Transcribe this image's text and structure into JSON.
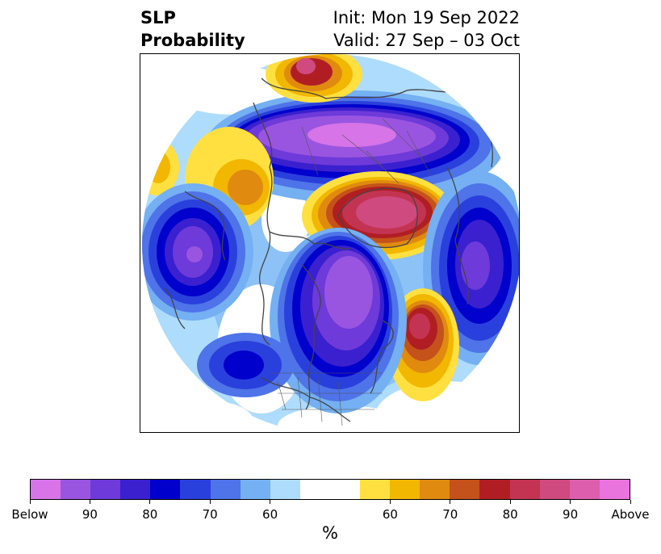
{
  "header": {
    "title_line1": "SLP",
    "title_line2": "Probability",
    "init": "Init: Mon 19 Sep 2022",
    "valid": "Valid: 27 Sep – 03 Oct"
  },
  "map": {
    "projection": "polar stereographic (Northern Hemisphere)",
    "features": [
      {
        "type": "below",
        "level_percent": 90,
        "near": "Arctic / northern Siberia"
      },
      {
        "type": "below",
        "level_percent": 80,
        "near": "North Pacific"
      },
      {
        "type": "below",
        "level_percent": 80,
        "near": "Eastern North America"
      },
      {
        "type": "below",
        "level_percent": 80,
        "near": "Northeast Atlantic / Europe"
      },
      {
        "type": "above",
        "level_percent": 90,
        "near": "Greenland"
      },
      {
        "type": "above",
        "level_percent": 80,
        "near": "Central North Atlantic"
      },
      {
        "type": "above",
        "level_percent": 70,
        "near": "Western Russia"
      },
      {
        "type": "above",
        "level_percent": 70,
        "near": "East Asia"
      }
    ]
  },
  "colorbar": {
    "colors": [
      "#d674e8",
      "#9a55e0",
      "#6e3ad9",
      "#3a20cf",
      "#0000cc",
      "#2a40dc",
      "#4f73e8",
      "#74b0f2",
      "#aedcfc",
      "#ffffff",
      "#ffe040",
      "#f2b700",
      "#e08a10",
      "#c4521a",
      "#b01e24",
      "#c33452",
      "#cf4a7f",
      "#dc5eac",
      "#ea74dd"
    ],
    "tick_labels": [
      "Below",
      "90",
      "80",
      "70",
      "60",
      "60",
      "70",
      "80",
      "90",
      "Above"
    ],
    "unit_label": "%"
  }
}
